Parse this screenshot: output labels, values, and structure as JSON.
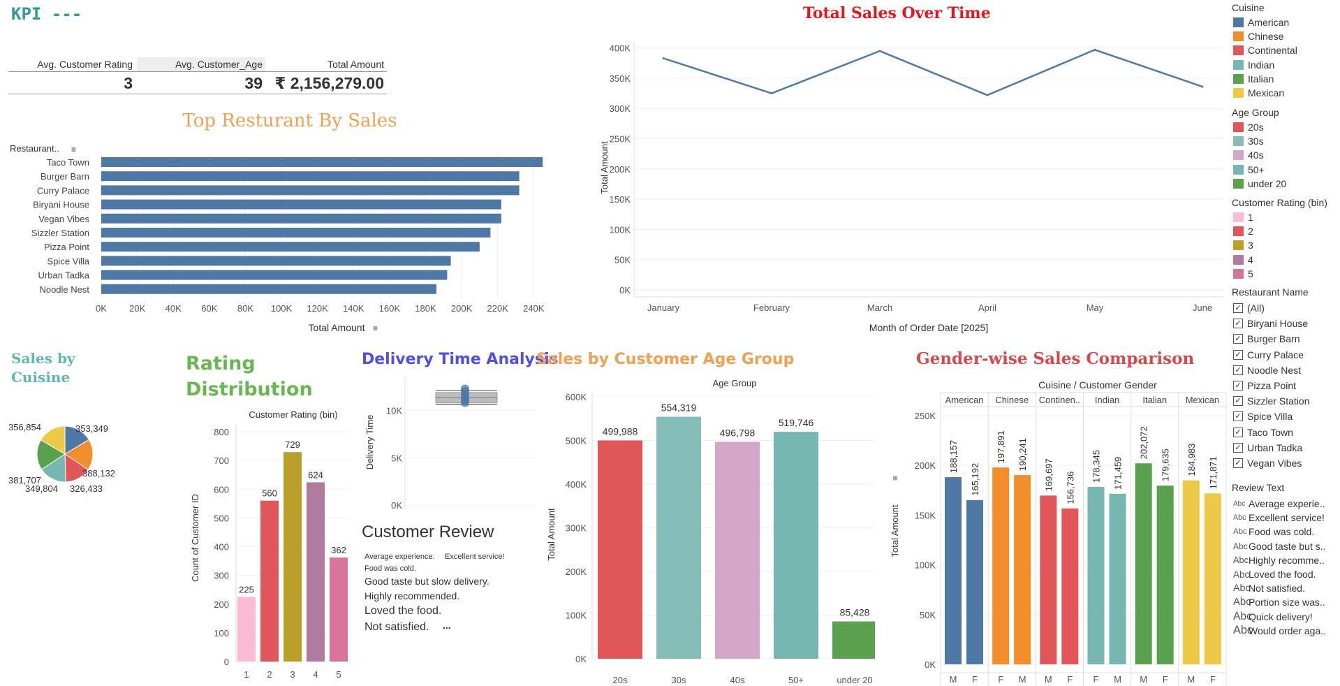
{
  "kpi": {
    "title": "KPI ---",
    "headers": [
      "Avg. Customer Rating",
      "Avg. Customer_Age",
      "Total Amount"
    ],
    "values": [
      "3",
      "39",
      "₹ 2,156,279.00"
    ]
  },
  "titles": {
    "top_restaurant": "Top Resturant By Sales",
    "sales_over_time": "Total Sales Over Time",
    "sales_by_cuisine_1": "Sales by",
    "sales_by_cuisine_2": "Cuisine",
    "rating_dist_1": "Rating",
    "rating_dist_2": "Distribution",
    "delivery": "Delivery Time Analysis",
    "age_group": "Sales by Customer Age Group",
    "gender": "Gender-wise Sales Comparison",
    "customer_review": "Customer Review"
  },
  "chart_data": [
    {
      "id": "top_restaurants",
      "type": "bar",
      "orientation": "horizontal",
      "category_header": "Restaurant..",
      "categories": [
        "Taco Town",
        "Burger Barn",
        "Curry Palace",
        "Biryani House",
        "Vegan Vibes",
        "Sizzler Station",
        "Pizza Point",
        "Spice Villa",
        "Urban Tadka",
        "Noodle Nest"
      ],
      "values": [
        245000,
        232000,
        232000,
        222000,
        222000,
        216000,
        210000,
        194000,
        192000,
        186000
      ],
      "xlabel": "Total Amount",
      "xticks": [
        "0K",
        "20K",
        "40K",
        "60K",
        "80K",
        "100K",
        "120K",
        "140K",
        "160K",
        "180K",
        "200K",
        "220K",
        "240K"
      ],
      "xlim": [
        0,
        255000
      ],
      "color": "#4e79a7"
    },
    {
      "id": "sales_over_time",
      "type": "line",
      "categories": [
        "January",
        "February",
        "March",
        "April",
        "May",
        "June"
      ],
      "values": [
        383000,
        325000,
        395000,
        322000,
        397000,
        336000
      ],
      "xlabel": "Month of Order Date [2025]",
      "ylabel": "Total Amount",
      "yticks": [
        "0K",
        "50K",
        "100K",
        "150K",
        "200K",
        "250K",
        "300K",
        "350K",
        "400K"
      ],
      "ylim": [
        0,
        410000
      ],
      "color": "#4e79a7"
    },
    {
      "id": "sales_by_cuisine",
      "type": "pie",
      "slices": [
        {
          "label": "American",
          "value": 353349,
          "text": "353,349",
          "color": "#4e79a7"
        },
        {
          "label": "Chinese",
          "value": 388132,
          "text": "388,132",
          "color": "#f28e2b"
        },
        {
          "label": "Continental",
          "value": 326433,
          "text": "326,433",
          "color": "#e15759"
        },
        {
          "label": "Indian",
          "value": 349804,
          "text": "349,804",
          "color": "#76b7b2"
        },
        {
          "label": "Italian",
          "value": 381707,
          "text": "381,707",
          "color": "#59a14f"
        },
        {
          "label": "Mexican",
          "value": 356854,
          "text": "356,854",
          "color": "#edc948"
        }
      ]
    },
    {
      "id": "rating_distribution",
      "type": "bar",
      "title": "Customer Rating (bin)",
      "categories": [
        "1",
        "2",
        "3",
        "4",
        "5"
      ],
      "values": [
        225,
        560,
        729,
        624,
        362
      ],
      "ylabel": "Count of Customer ID",
      "yticks": [
        "0",
        "100",
        "200",
        "300",
        "400",
        "500",
        "600",
        "700",
        "800"
      ],
      "ylim": [
        0,
        800
      ],
      "colors": [
        "#f9bcd4",
        "#e15759",
        "#b9a02a",
        "#b07aa1",
        "#d8739a"
      ]
    },
    {
      "id": "delivery_time",
      "type": "box",
      "ylabel": "Delivery Time",
      "yticks": [
        "0K",
        "5K",
        "10K"
      ],
      "ylim": [
        0,
        13000
      ]
    },
    {
      "id": "sales_by_age_group",
      "type": "bar",
      "title": "Age Group",
      "categories": [
        "20s",
        "30s",
        "40s",
        "50+",
        "under 20"
      ],
      "values": [
        499988,
        554319,
        496798,
        519746,
        85428
      ],
      "labels": [
        "499,988",
        "554,319",
        "496,798",
        "519,746",
        "85,428"
      ],
      "ylabel": "Total Amount",
      "yticks": [
        "0K",
        "100K",
        "200K",
        "300K",
        "400K",
        "500K",
        "600K"
      ],
      "ylim": [
        0,
        600000
      ],
      "colors": [
        "#e15759",
        "#86bcb6",
        "#d4a6c8",
        "#76b7b2",
        "#59a14f"
      ]
    },
    {
      "id": "gender_sales",
      "type": "bar",
      "header": "Cuisine / Customer Gender",
      "groups": [
        {
          "cuisine": "American",
          "header": "American",
          "color": "#4e79a7",
          "bars": [
            {
              "gender": "M",
              "value": 188157,
              "label": "188,157"
            },
            {
              "gender": "F",
              "value": 165192,
              "label": "165,192"
            }
          ]
        },
        {
          "cuisine": "Chinese",
          "header": "Chinese",
          "color": "#f28e2b",
          "bars": [
            {
              "gender": "F",
              "value": 197891,
              "label": "197,891"
            },
            {
              "gender": "M",
              "value": 190241,
              "label": "190,241"
            }
          ]
        },
        {
          "cuisine": "Continental",
          "header": "Continen..",
          "color": "#e15759",
          "bars": [
            {
              "gender": "M",
              "value": 169697,
              "label": "169,697"
            },
            {
              "gender": "F",
              "value": 156736,
              "label": "156,736"
            }
          ]
        },
        {
          "cuisine": "Indian",
          "header": "Indian",
          "color": "#76b7b2",
          "bars": [
            {
              "gender": "F",
              "value": 178345,
              "label": "178,345"
            },
            {
              "gender": "M",
              "value": 171459,
              "label": "171,459"
            }
          ]
        },
        {
          "cuisine": "Italian",
          "header": "Italian",
          "color": "#59a14f",
          "bars": [
            {
              "gender": "M",
              "value": 202072,
              "label": "202,072"
            },
            {
              "gender": "F",
              "value": 179635,
              "label": "179,635"
            }
          ]
        },
        {
          "cuisine": "Mexican",
          "header": "Mexican",
          "color": "#edc948",
          "bars": [
            {
              "gender": "M",
              "value": 184983,
              "label": "184,983"
            },
            {
              "gender": "F",
              "value": 171871,
              "label": "171,871"
            }
          ]
        }
      ],
      "ylabel": "Total Amount",
      "yticks": [
        "0K",
        "50K",
        "100K",
        "150K",
        "200K",
        "250K"
      ],
      "ylim": [
        0,
        250000
      ]
    }
  ],
  "review": {
    "rows": [
      [
        "Average experience.",
        "Excellent service!"
      ],
      [
        "Food was cold."
      ],
      [
        "Good taste but slow delivery."
      ],
      [
        "Highly recommended."
      ],
      [
        "Loved the food."
      ],
      [
        "Not satisfied."
      ]
    ],
    "more": "..."
  },
  "legend": {
    "cuisine": {
      "title": "Cuisine",
      "items": [
        {
          "label": "American",
          "color": "#4e79a7"
        },
        {
          "label": "Chinese",
          "color": "#f28e2b"
        },
        {
          "label": "Continental",
          "color": "#e15759"
        },
        {
          "label": "Indian",
          "color": "#76b7b2"
        },
        {
          "label": "Italian",
          "color": "#59a14f"
        },
        {
          "label": "Mexican",
          "color": "#edc948"
        }
      ]
    },
    "age_group": {
      "title": "Age Group",
      "items": [
        {
          "label": "20s",
          "color": "#e15759"
        },
        {
          "label": "30s",
          "color": "#86bcb6"
        },
        {
          "label": "40s",
          "color": "#d4a6c8"
        },
        {
          "label": "50+",
          "color": "#76b7b2"
        },
        {
          "label": "under 20",
          "color": "#59a14f"
        }
      ]
    },
    "rating": {
      "title": "Customer Rating (bin)",
      "items": [
        {
          "label": "1",
          "color": "#f9bcd4"
        },
        {
          "label": "2",
          "color": "#e15759"
        },
        {
          "label": "3",
          "color": "#b9a02a"
        },
        {
          "label": "4",
          "color": "#b07aa1"
        },
        {
          "label": "5",
          "color": "#d8739a"
        }
      ]
    },
    "restaurant": {
      "title": "Restaurant Name",
      "items": [
        "(All)",
        "Biryani House",
        "Burger Barn",
        "Curry Palace",
        "Noodle Nest",
        "Pizza Point",
        "Sizzler Station",
        "Spice Villa",
        "Taco Town",
        "Urban Tadka",
        "Vegan Vibes"
      ]
    },
    "review_text": {
      "title": "Review Text",
      "abc": "Abc",
      "items": [
        "Average experie..",
        "Excellent service!",
        "Food was cold.",
        "Good taste but s..",
        "Highly recomme..",
        "Loved the food.",
        "Not satisfied.",
        "Portion size was..",
        "Quick delivery!",
        "Would order aga.."
      ]
    }
  }
}
